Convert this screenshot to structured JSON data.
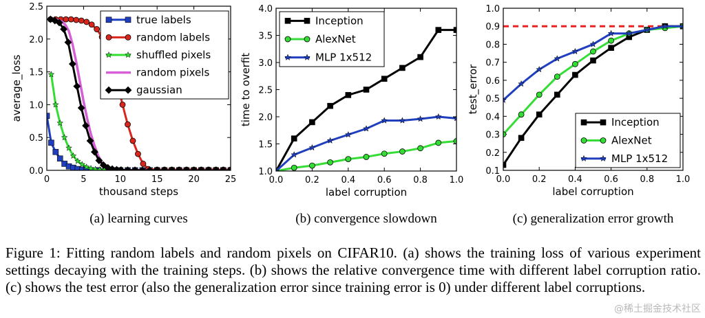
{
  "figure": {
    "caption": "Figure 1: Fitting random labels and random pixels on CIFAR10. (a) shows the training loss of various experiment settings decaying with the training steps. (b) shows the relative convergence time with different label corruption ratio. (c) shows the test error (also the generalization error since training error is 0) under different label corruptions.",
    "watermark": "@稀土掘金技术社区"
  },
  "chart_data": [
    {
      "type": "line",
      "subcaption": "(a) learning curves",
      "xlabel": "thousand steps",
      "ylabel": "average_loss",
      "xlim": [
        0,
        25
      ],
      "ylim": [
        0,
        2.5
      ],
      "xticks": [
        "0",
        "5",
        "10",
        "15",
        "20",
        "25"
      ],
      "yticks": [
        "0.0",
        "0.5",
        "1.0",
        "1.5",
        "2.0",
        "2.5"
      ],
      "legend": "top-right",
      "series": [
        {
          "name": "true labels",
          "color": "#1f3fbf",
          "marker": "square",
          "x": [
            0,
            0.6,
            1.2,
            1.8,
            2.4,
            3,
            3.6,
            4.2,
            4.8,
            5.4,
            6,
            7,
            8,
            9,
            10,
            11,
            12,
            13,
            14,
            15,
            16,
            17,
            18,
            19,
            20,
            21,
            22,
            23,
            24,
            25
          ],
          "y": [
            0.83,
            0.42,
            0.28,
            0.18,
            0.1,
            0.06,
            0.04,
            0.02,
            0.01,
            0.005,
            0.003,
            0.002,
            0.001,
            0.001,
            0.001,
            0.001,
            0.001,
            0.001,
            0.001,
            0.001,
            0.001,
            0.001,
            0.001,
            0.001,
            0.001,
            0.001,
            0.001,
            0.001,
            0.001,
            0.001
          ]
        },
        {
          "name": "random labels",
          "color": "#d9261c",
          "marker": "circle",
          "x": [
            0.5,
            1.2,
            1.9,
            2.6,
            3.3,
            4,
            4.7,
            5.4,
            6.1,
            6.8,
            7.5,
            8.2,
            8.9,
            9.6,
            10.3,
            11,
            11.7,
            12.4,
            13.1,
            13.8,
            15,
            16,
            17,
            18,
            19,
            20,
            21,
            22,
            23,
            24,
            25
          ],
          "y": [
            2.3,
            2.3,
            2.3,
            2.3,
            2.3,
            2.29,
            2.28,
            2.26,
            2.22,
            2.15,
            2.03,
            1.85,
            1.6,
            1.32,
            1.0,
            0.7,
            0.45,
            0.25,
            0.1,
            0.02,
            0.01,
            0.01,
            0.01,
            0.01,
            0.01,
            0.01,
            0.01,
            0.01,
            0.01,
            0.01,
            0.01
          ]
        },
        {
          "name": "shuffled pixels",
          "color": "#33dd33",
          "marker": "star",
          "x": [
            0.6,
            1.2,
            1.8,
            2.4,
            3,
            3.6,
            4.2,
            4.8,
            5.4,
            6,
            6.6,
            7.2,
            7.8,
            8.4,
            9,
            10,
            11,
            12,
            13,
            14,
            15,
            16,
            17,
            18,
            19,
            20,
            21,
            22,
            23,
            24,
            25
          ],
          "y": [
            1.46,
            1.0,
            0.72,
            0.5,
            0.34,
            0.22,
            0.14,
            0.09,
            0.05,
            0.03,
            0.015,
            0.01,
            0.005,
            0.003,
            0.002,
            0.001,
            0.001,
            0.001,
            0.001,
            0.001,
            0.001,
            0.001,
            0.001,
            0.001,
            0.001,
            0.001,
            0.001,
            0.001,
            0.001,
            0.001,
            0.001
          ]
        },
        {
          "name": "random pixels",
          "color": "#d65fd6",
          "marker": "none",
          "x": [
            0.5,
            1,
            1.5,
            2,
            2.5,
            3,
            3.5,
            4,
            4.5,
            5,
            5.5,
            6,
            6.5,
            7,
            7.5,
            8,
            8.5,
            9,
            9.5,
            10,
            11,
            12,
            15,
            20,
            25
          ],
          "y": [
            2.3,
            2.3,
            2.29,
            2.27,
            2.22,
            2.12,
            1.92,
            1.65,
            1.35,
            1.05,
            0.78,
            0.55,
            0.37,
            0.22,
            0.12,
            0.06,
            0.03,
            0.015,
            0.008,
            0.005,
            0.003,
            0.002,
            0.001,
            0.001,
            0.001
          ]
        },
        {
          "name": "gaussian",
          "color": "#000000",
          "marker": "diamond",
          "x": [
            0.5,
            1.1,
            1.7,
            2.3,
            2.9,
            3.5,
            4.1,
            4.7,
            5.3,
            5.9,
            6.5,
            7.1,
            7.7,
            8.3,
            8.9,
            9.5,
            10.1,
            11,
            12,
            13,
            14,
            15,
            16,
            17,
            18,
            19,
            20,
            21,
            22,
            23,
            24,
            25
          ],
          "y": [
            2.3,
            2.28,
            2.25,
            2.15,
            1.95,
            1.62,
            1.28,
            0.95,
            0.68,
            0.45,
            0.28,
            0.15,
            0.08,
            0.04,
            0.02,
            0.01,
            0.005,
            0.003,
            0.002,
            0.001,
            0.001,
            0.001,
            0.001,
            0.001,
            0.001,
            0.001,
            0.001,
            0.001,
            0.001,
            0.001,
            0.001,
            0.001
          ]
        }
      ]
    },
    {
      "type": "line",
      "subcaption": "(b) convergence slowdown",
      "xlabel": "label corruption",
      "ylabel": "time to overfit",
      "xlim": [
        0,
        1
      ],
      "ylim": [
        1,
        4
      ],
      "xticks": [
        "0.0",
        "0.2",
        "0.4",
        "0.6",
        "0.8",
        "1.0"
      ],
      "yticks": [
        "1.0",
        "1.5",
        "2.0",
        "2.5",
        "3.0",
        "3.5",
        "4.0"
      ],
      "legend": "top-left",
      "series": [
        {
          "name": "Inception",
          "color": "#000000",
          "marker": "square",
          "x": [
            0,
            0.1,
            0.2,
            0.3,
            0.4,
            0.5,
            0.6,
            0.7,
            0.8,
            0.9,
            1.0
          ],
          "y": [
            1.0,
            1.6,
            1.9,
            2.2,
            2.4,
            2.5,
            2.7,
            2.9,
            3.1,
            3.6,
            3.6
          ]
        },
        {
          "name": "AlexNet",
          "color": "#33dd33",
          "marker": "circle",
          "x": [
            0,
            0.1,
            0.2,
            0.3,
            0.4,
            0.5,
            0.6,
            0.7,
            0.8,
            0.9,
            1.0
          ],
          "y": [
            1.0,
            1.06,
            1.1,
            1.16,
            1.22,
            1.26,
            1.32,
            1.36,
            1.42,
            1.52,
            1.55
          ]
        },
        {
          "name": "MLP 1x512",
          "color": "#1f3fbf",
          "marker": "star",
          "x": [
            0,
            0.1,
            0.2,
            0.3,
            0.4,
            0.5,
            0.6,
            0.7,
            0.8,
            0.9,
            1.0
          ],
          "y": [
            1.0,
            1.3,
            1.43,
            1.56,
            1.67,
            1.78,
            1.93,
            1.93,
            1.96,
            2.0,
            1.97
          ]
        }
      ]
    },
    {
      "type": "line",
      "subcaption": "(c) generalization error growth",
      "xlabel": "label corruption",
      "ylabel": "test_error",
      "xlim": [
        0,
        1
      ],
      "ylim": [
        0.1,
        1.0
      ],
      "xticks": [
        "0.0",
        "0.2",
        "0.4",
        "0.6",
        "0.8",
        "1.0"
      ],
      "yticks": [
        "0.1",
        "0.2",
        "0.3",
        "0.4",
        "0.5",
        "0.6",
        "0.7",
        "0.8",
        "0.9",
        "1.0"
      ],
      "legend": "bottom-right",
      "reference_line": {
        "y": 0.9,
        "color": "#ee2020",
        "style": "dashed"
      },
      "series": [
        {
          "name": "Inception",
          "color": "#000000",
          "marker": "square",
          "x": [
            0,
            0.1,
            0.2,
            0.3,
            0.4,
            0.5,
            0.6,
            0.7,
            0.8,
            0.9,
            1.0
          ],
          "y": [
            0.13,
            0.28,
            0.41,
            0.52,
            0.63,
            0.71,
            0.78,
            0.84,
            0.88,
            0.9,
            0.9
          ]
        },
        {
          "name": "AlexNet",
          "color": "#33dd33",
          "marker": "circle",
          "x": [
            0,
            0.1,
            0.2,
            0.3,
            0.4,
            0.5,
            0.6,
            0.7,
            0.8,
            0.9,
            1.0
          ],
          "y": [
            0.3,
            0.41,
            0.52,
            0.62,
            0.69,
            0.76,
            0.82,
            0.86,
            0.88,
            0.89,
            0.9
          ]
        },
        {
          "name": "MLP 1x512",
          "color": "#1f3fbf",
          "marker": "star",
          "x": [
            0,
            0.1,
            0.2,
            0.3,
            0.4,
            0.5,
            0.6,
            0.7,
            0.8,
            0.9,
            1.0
          ],
          "y": [
            0.49,
            0.58,
            0.66,
            0.72,
            0.76,
            0.8,
            0.86,
            0.86,
            0.88,
            0.9,
            0.9
          ]
        }
      ]
    }
  ]
}
